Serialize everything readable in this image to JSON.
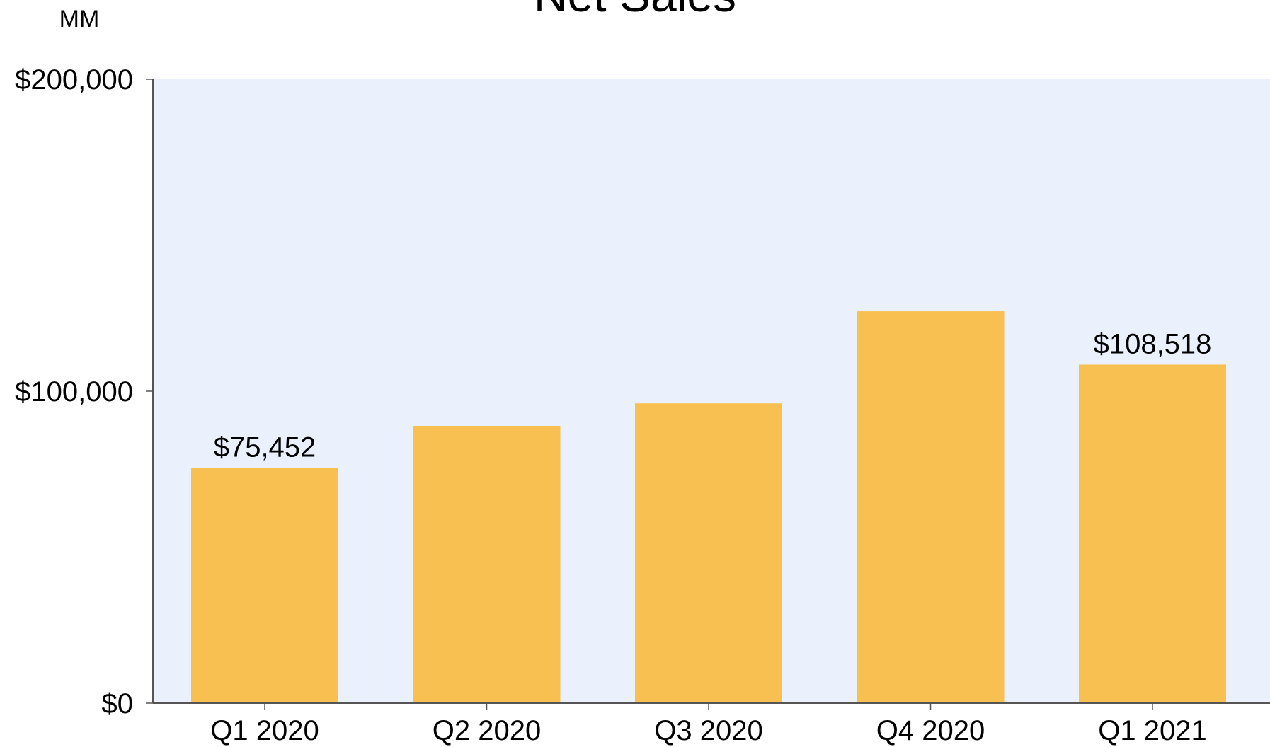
{
  "chart_data": {
    "type": "bar",
    "title": "Net Sales",
    "unit_label": "MM",
    "categories": [
      "Q1 2020",
      "Q2 2020",
      "Q3 2020",
      "Q4 2020",
      "Q1 2021"
    ],
    "values": [
      75452,
      88900,
      96100,
      125600,
      108518
    ],
    "data_labels": [
      "$75,452",
      "",
      "",
      "",
      "$108,518"
    ],
    "ylim": [
      0,
      200000
    ],
    "yticks": [
      0,
      100000,
      200000
    ],
    "ytick_labels": [
      "$0",
      "$100,000",
      "$200,000"
    ],
    "xlabel": "",
    "ylabel": "",
    "grid": false,
    "colors": {
      "bar": "#F8BF51",
      "plot_background": "#EAF1FC",
      "axis": "#555555",
      "text": "#000000"
    }
  }
}
